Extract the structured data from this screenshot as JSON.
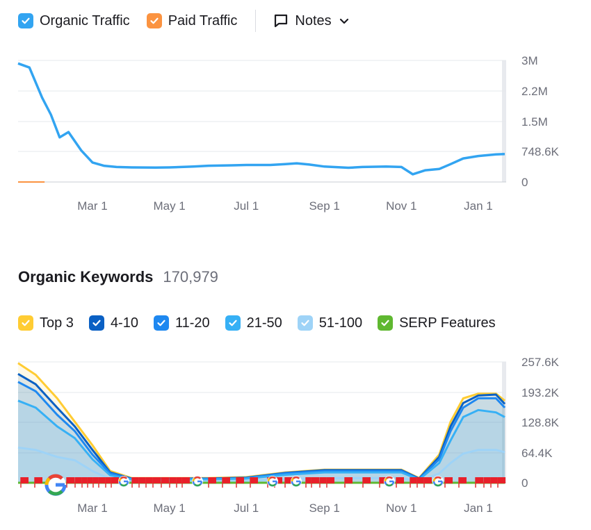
{
  "traffic_legend": {
    "organic": {
      "label": "Organic Traffic",
      "color": "#32a4f1",
      "checked": true
    },
    "paid": {
      "label": "Paid Traffic",
      "color": "#fb9340",
      "checked": true
    },
    "notes": {
      "label": "Notes",
      "icon": "comment-icon",
      "chevron": "chevron-down-icon"
    }
  },
  "keywords_header": {
    "title": "Organic Keywords",
    "count": "170,979"
  },
  "keywords_legend": [
    {
      "label": "Top 3",
      "color": "#ffcc33"
    },
    {
      "label": "4-10",
      "color": "#0a60c4"
    },
    {
      "label": "11-20",
      "color": "#1e88f0"
    },
    {
      "label": "21-50",
      "color": "#36b0f5"
    },
    {
      "label": "51-100",
      "color": "#9ed3f7"
    },
    {
      "label": "SERP Features",
      "color": "#5fb830"
    }
  ],
  "chart_data": [
    {
      "type": "line",
      "x_tick_labels": [
        "Mar 1",
        "May 1",
        "Jul 1",
        "Sep 1",
        "Nov 1",
        "Jan 1"
      ],
      "y_tick_labels": [
        "3M",
        "2.2M",
        "1.5M",
        "748.6K",
        "0"
      ],
      "ylim": [
        0,
        2994400
      ],
      "grid": true,
      "series": [
        {
          "name": "Organic Traffic",
          "color": "#32a4f1",
          "x": [
            "Jan 1",
            "Jan 10",
            "Jan 20",
            "Jan 27",
            "Feb 3",
            "Feb 10",
            "Feb 20",
            "Mar 1",
            "Mar 10",
            "Mar 20",
            "Apr 1",
            "Apr 20",
            "May 1",
            "May 20",
            "Jun 1",
            "Jun 20",
            "Jul 1",
            "Jul 20",
            "Aug 1",
            "Aug 10",
            "Aug 20",
            "Sep 1",
            "Sep 20",
            "Oct 1",
            "Oct 20",
            "Nov 1",
            "Nov 10",
            "Nov 20",
            "Dec 1",
            "Dec 10",
            "Dec 20",
            "Jan 1",
            "Jan 15",
            "Jan 22"
          ],
          "values": [
            2920000,
            2820000,
            2080000,
            1660000,
            1100000,
            1230000,
            780000,
            480000,
            400000,
            370000,
            360000,
            355000,
            360000,
            380000,
            400000,
            410000,
            420000,
            420000,
            440000,
            460000,
            430000,
            380000,
            350000,
            370000,
            380000,
            370000,
            190000,
            290000,
            320000,
            440000,
            580000,
            640000,
            680000,
            690000
          ]
        },
        {
          "name": "Paid Traffic",
          "color": "#fb9340",
          "x": [
            "Jan 1",
            "Jan 22"
          ],
          "values": [
            0,
            0
          ]
        }
      ]
    },
    {
      "type": "area",
      "x_tick_labels": [
        "Mar 1",
        "May 1",
        "Jul 1",
        "Sep 1",
        "Nov 1",
        "Jan 1"
      ],
      "y_tick_labels": [
        "257.6K",
        "193.2K",
        "128.8K",
        "64.4K",
        "0"
      ],
      "ylim": [
        0,
        257600
      ],
      "grid": true,
      "x": [
        "Jan 1",
        "Jan 15",
        "Feb 1",
        "Feb 15",
        "Mar 1",
        "Mar 15",
        "Apr 1",
        "May 1",
        "Jun 1",
        "Jul 1",
        "Aug 1",
        "Sep 1",
        "Oct 1",
        "Nov 1",
        "Nov 15",
        "Dec 1",
        "Dec 10",
        "Dec 20",
        "Jan 1",
        "Jan 15",
        "Jan 22"
      ],
      "series": [
        {
          "name": "Top 3",
          "color": "#ffcc33",
          "values": [
            255000,
            230000,
            180000,
            130000,
            80000,
            25000,
            10000,
            10000,
            10000,
            12000,
            22000,
            28000,
            28000,
            28000,
            10000,
            60000,
            130000,
            180000,
            190000,
            190000,
            175000
          ]
        },
        {
          "name": "4-10",
          "color": "#0a60c4",
          "values": [
            232000,
            210000,
            160000,
            120000,
            70000,
            22000,
            9000,
            9000,
            9000,
            11000,
            21000,
            27000,
            27000,
            27000,
            9000,
            55000,
            120000,
            170000,
            186000,
            188000,
            168000
          ]
        },
        {
          "name": "11-20",
          "color": "#1e88f0",
          "values": [
            215000,
            195000,
            145000,
            110000,
            60000,
            20000,
            8000,
            8000,
            8000,
            10000,
            20000,
            25000,
            25000,
            25000,
            8000,
            50000,
            110000,
            160000,
            180000,
            180000,
            160000
          ]
        },
        {
          "name": "21-50",
          "color": "#36b0f5",
          "values": [
            175000,
            160000,
            120000,
            95000,
            50000,
            16000,
            7000,
            7000,
            7000,
            9000,
            17000,
            22000,
            22000,
            22000,
            7000,
            42000,
            90000,
            140000,
            155000,
            150000,
            140000
          ]
        },
        {
          "name": "51-100",
          "color": "#9ed3f7",
          "values": [
            75000,
            70000,
            55000,
            48000,
            25000,
            8000,
            3000,
            3000,
            3000,
            4000,
            8000,
            10000,
            10000,
            10000,
            3000,
            20000,
            42000,
            62000,
            70000,
            70000,
            65000
          ]
        },
        {
          "name": "SERP Features",
          "color": "#5fb830",
          "values": [
            0,
            0,
            0,
            0,
            0,
            0,
            0,
            0,
            0,
            0,
            0,
            0,
            0,
            0,
            0,
            0,
            0,
            0,
            0,
            0,
            0
          ]
        }
      ]
    }
  ]
}
